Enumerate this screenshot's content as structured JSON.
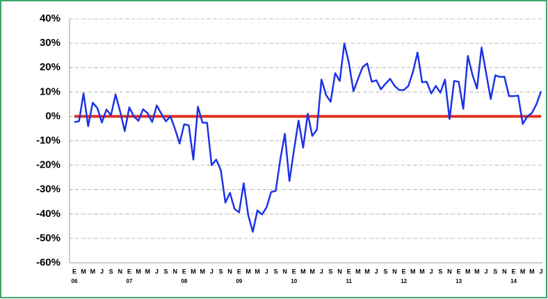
{
  "chart_data": {
    "type": "line",
    "categories": [
      "E",
      null,
      "M",
      null,
      "M",
      null,
      "J",
      null,
      "S",
      null,
      "N",
      null,
      "E",
      null,
      "M",
      null,
      "M",
      null,
      "J",
      null,
      "S",
      null,
      "N",
      null,
      "E",
      null,
      "M",
      null,
      "M",
      null,
      "J",
      null,
      "S",
      null,
      "N",
      null,
      "E",
      null,
      "M",
      null,
      "M",
      null,
      "J",
      null,
      "S",
      null,
      "N",
      null,
      "E",
      null,
      "M",
      null,
      "M",
      null,
      "J",
      null,
      "S",
      null,
      "N",
      null,
      "E",
      null,
      "M",
      null,
      "M",
      null,
      "J",
      null,
      "S",
      null,
      "N",
      null,
      "E",
      null,
      "M",
      null,
      "M",
      null,
      "J",
      null,
      "S",
      null,
      "N",
      null,
      "E",
      null,
      "M",
      null,
      "M",
      null,
      "J",
      null,
      "S",
      null,
      "N",
      null,
      "E",
      null,
      "M",
      null,
      "M",
      null,
      "J"
    ],
    "year_labels": [
      "06",
      "07",
      "08",
      "09",
      "10",
      "11",
      "12",
      "13",
      "14"
    ],
    "series": [
      {
        "color": "#1a33e6",
        "values": [
          -2.3,
          -2,
          9.4,
          -4,
          5.6,
          3.5,
          -2.5,
          2.8,
          0.5,
          9,
          2,
          -6,
          3.7,
          0,
          -1.8,
          2.9,
          1.3,
          -2.3,
          4.5,
          1.1,
          -2,
          0,
          -5.2,
          -11.1,
          -3.2,
          -3.7,
          -17.7,
          4,
          -2.6,
          -2.6,
          -20,
          -17.7,
          -22,
          -35.3,
          -31.3,
          -37.9,
          -39.3,
          -27.4,
          -40.5,
          -47.3,
          -38.5,
          -40.2,
          -37.3,
          -31,
          -30.5,
          -17.7,
          -7.1,
          -26.5,
          -13.7,
          -1.7,
          -12.8,
          1.1,
          -8,
          -5.4,
          15.1,
          8.8,
          6,
          17.7,
          14.5,
          29.9,
          21.9,
          10.3,
          15.4,
          20.2,
          21.7,
          14.2,
          14.8,
          11.1,
          13.4,
          15.4,
          12.5,
          10.8,
          10.8,
          12.5,
          18.2,
          26.2,
          14,
          14.2,
          9.4,
          12.5,
          9.7,
          15.1,
          -1.1,
          14.5,
          14.2,
          3.1,
          24.8,
          17.1,
          11.4,
          28.2,
          17.7,
          7.1,
          16.8,
          16.2,
          16.2,
          8.3,
          8.3,
          8.5,
          -3.1,
          0,
          1.4,
          5,
          10.3
        ]
      }
    ],
    "zero_line_color": "#e0301e",
    "ylim": [
      -60,
      40
    ],
    "yticks": [
      {
        "value": -60,
        "label": "-60%"
      },
      {
        "value": -50,
        "label": "-50%"
      },
      {
        "value": -40,
        "label": "-40%"
      },
      {
        "value": -30,
        "label": "-30%"
      },
      {
        "value": -20,
        "label": "-20%"
      },
      {
        "value": -10,
        "label": "-10%"
      },
      {
        "value": 0,
        "label": "0%"
      },
      {
        "value": 10,
        "label": "10%"
      },
      {
        "value": 20,
        "label": "20%"
      },
      {
        "value": 30,
        "label": "30%"
      },
      {
        "value": 40,
        "label": "40%"
      }
    ],
    "grid": true
  }
}
